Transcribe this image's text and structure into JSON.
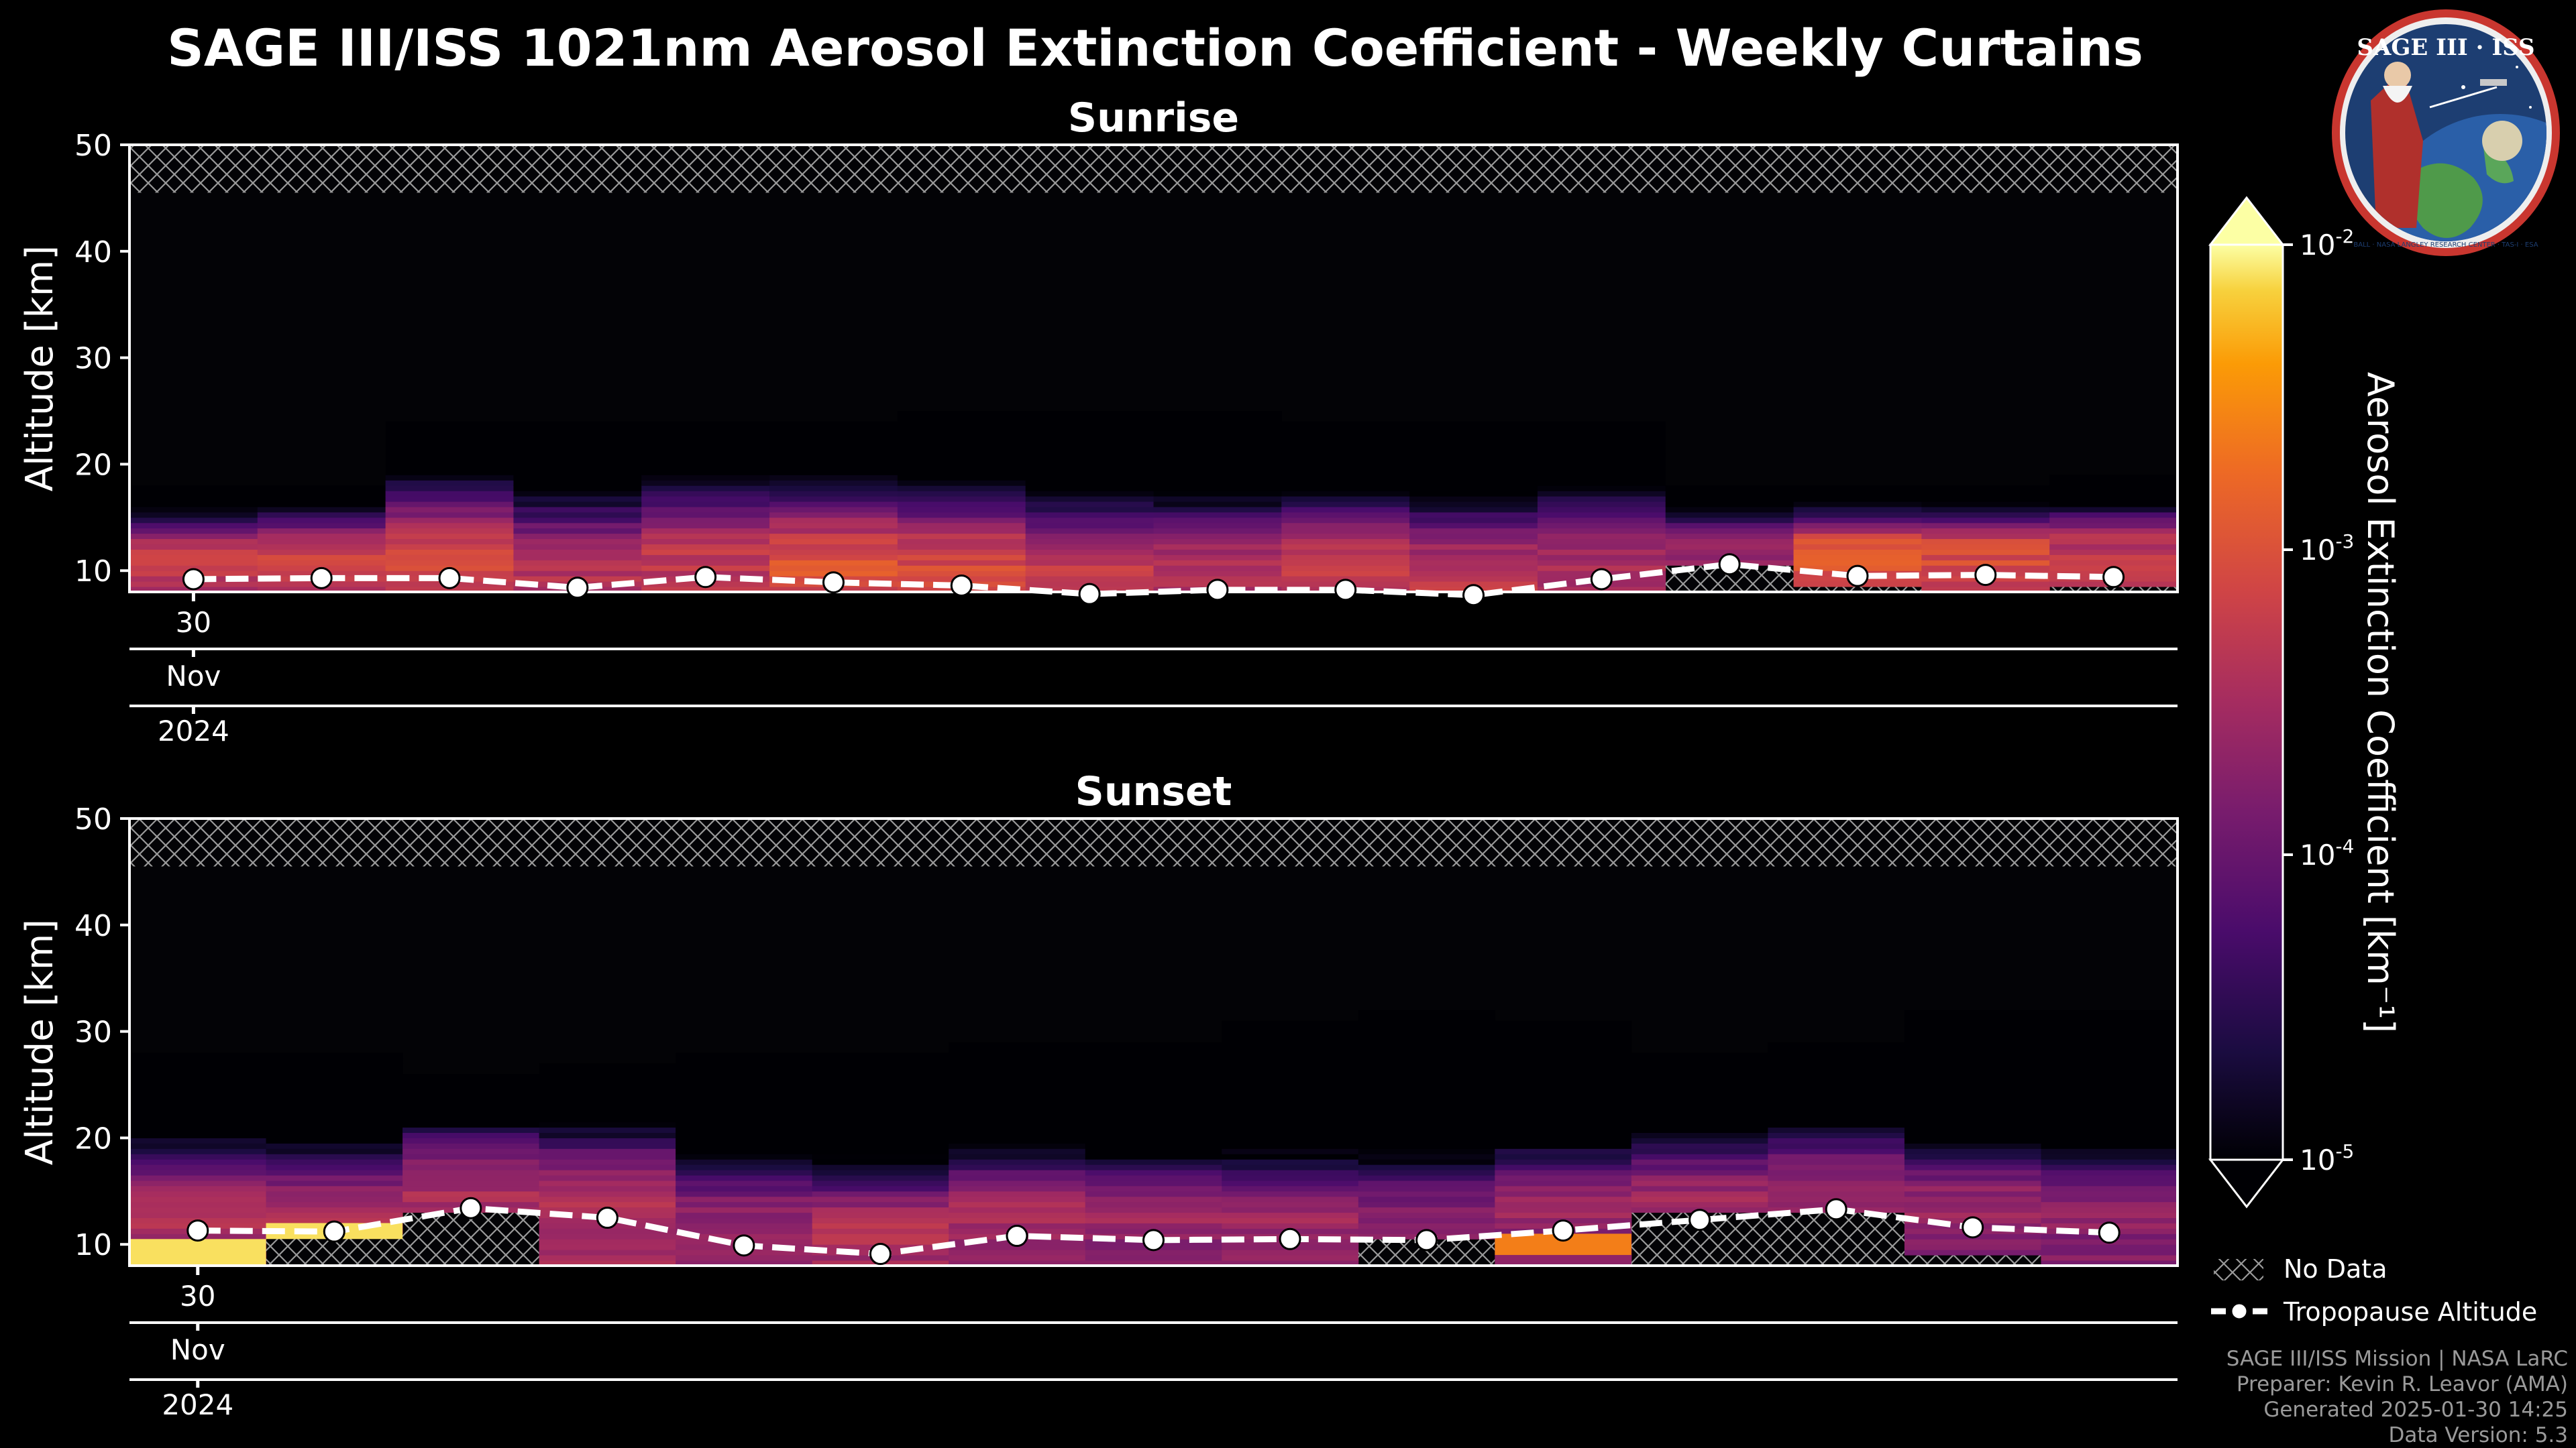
{
  "title": "SAGE III/ISS 1021nm Aerosol Extinction Coefficient - Weekly Curtains",
  "colorbar": {
    "label": "Aerosol Extinction Coefficient [km⁻¹]",
    "scale": "log",
    "range": [
      1e-05,
      0.01
    ],
    "tick_labels": [
      {
        "base": "10",
        "exp": "-2",
        "value": 0.01
      },
      {
        "base": "10",
        "exp": "-3",
        "value": 0.001
      },
      {
        "base": "10",
        "exp": "-4",
        "value": 0.0001
      },
      {
        "base": "10",
        "exp": "-5",
        "value": 1e-05
      }
    ],
    "colormap": "inferno",
    "extend": "both"
  },
  "legend": {
    "no_data": "No Data",
    "tropopause": "Tropopause Altitude"
  },
  "logo": {
    "text": "SAGE III · ISS",
    "ring_text": "BALL · NASA LANGLEY RESEARCH CENTER · TAS-I · ESA"
  },
  "credits": [
    "SAGE III/ISS Mission | NASA LaRC",
    "Preparer: Kevin R. Leavor (AMA)",
    "Generated 2025-01-30 14:25",
    "Data Version: 5.3"
  ],
  "chart_data": [
    {
      "type": "heatmap",
      "title": "Sunrise",
      "ylabel": "Altitude [km]",
      "ylim": [
        8,
        50
      ],
      "yticks": [
        10,
        20,
        30,
        40,
        50
      ],
      "xtick_labels": {
        "day": "30",
        "month": "Nov",
        "year": "2024"
      },
      "no_data_above_km": 45.5,
      "weeks": [
        {
          "bottom": 8,
          "top": 18,
          "log_ext": -3.5,
          "trop": 9.2
        },
        {
          "bottom": 8,
          "top": 18,
          "log_ext": -3.4,
          "trop": 9.3
        },
        {
          "bottom": 8,
          "top": 24,
          "log_ext": -3.3,
          "trop": 9.3
        },
        {
          "bottom": 8,
          "top": 24,
          "log_ext": -3.6,
          "trop": 8.4
        },
        {
          "bottom": 8,
          "top": 24,
          "log_ext": -3.5,
          "trop": 9.4
        },
        {
          "bottom": 8,
          "top": 24,
          "log_ext": -3.2,
          "trop": 8.9
        },
        {
          "bottom": 8,
          "top": 25,
          "log_ext": -3.3,
          "trop": 8.6
        },
        {
          "bottom": 8,
          "top": 25,
          "log_ext": -3.4,
          "trop": 7.8
        },
        {
          "bottom": 8,
          "top": 25,
          "log_ext": -3.6,
          "trop": 8.2
        },
        {
          "bottom": 8,
          "top": 24,
          "log_ext": -3.4,
          "trop": 8.2
        },
        {
          "bottom": 8,
          "top": 24,
          "log_ext": -3.5,
          "trop": 7.7
        },
        {
          "bottom": 8,
          "top": 24,
          "log_ext": -3.7,
          "trop": 9.2
        },
        {
          "bottom": 10.5,
          "top": 18,
          "log_ext": -3.8,
          "trop": 10.6
        },
        {
          "bottom": 8.5,
          "top": 18,
          "log_ext": -3.2,
          "trop": 9.5
        },
        {
          "bottom": 8,
          "top": 18,
          "log_ext": -3.3,
          "trop": 9.6
        },
        {
          "bottom": 8.5,
          "top": 19,
          "log_ext": -3.5,
          "trop": 9.4
        }
      ]
    },
    {
      "type": "heatmap",
      "title": "Sunset",
      "ylabel": "Altitude [km]",
      "ylim": [
        8,
        50
      ],
      "yticks": [
        10,
        20,
        30,
        40,
        50
      ],
      "xtick_labels": {
        "day": "30",
        "month": "Nov",
        "year": "2024"
      },
      "no_data_above_km": 45.5,
      "weeks": [
        {
          "bottom": 8,
          "top": 28,
          "log_ext": -3.6,
          "trop": 11.3
        },
        {
          "bottom": 11,
          "top": 28,
          "log_ext": -3.7,
          "trop": 11.2
        },
        {
          "bottom": 13,
          "top": 26,
          "log_ext": -3.7,
          "trop": 13.4
        },
        {
          "bottom": 8,
          "top": 27,
          "log_ext": -3.6,
          "trop": 12.5
        },
        {
          "bottom": 8,
          "top": 28,
          "log_ext": -3.8,
          "trop": 9.9
        },
        {
          "bottom": 8,
          "top": 28,
          "log_ext": -3.6,
          "trop": 9.1
        },
        {
          "bottom": 8,
          "top": 29,
          "log_ext": -3.7,
          "trop": 10.8
        },
        {
          "bottom": 8,
          "top": 29,
          "log_ext": -3.8,
          "trop": 10.4
        },
        {
          "bottom": 8,
          "top": 31,
          "log_ext": -3.8,
          "trop": 10.5
        },
        {
          "bottom": 10.5,
          "top": 32,
          "log_ext": -3.9,
          "trop": 10.4
        },
        {
          "bottom": 8,
          "top": 31,
          "log_ext": -3.8,
          "trop": 11.3
        },
        {
          "bottom": 13,
          "top": 28,
          "log_ext": -3.8,
          "trop": 12.3
        },
        {
          "bottom": 13,
          "top": 29,
          "log_ext": -3.8,
          "trop": 13.3
        },
        {
          "bottom": 9,
          "top": 32,
          "log_ext": -3.8,
          "trop": 11.6
        },
        {
          "bottom": 8,
          "top": 32,
          "log_ext": -3.9,
          "trop": 11.1
        }
      ],
      "highlights": [
        {
          "week": 0,
          "bottom": 8,
          "top": 10.5,
          "log_ext": -2.1
        },
        {
          "week": 1,
          "bottom": 10.5,
          "top": 12,
          "log_ext": -2.1
        },
        {
          "week": 10,
          "bottom": 9,
          "top": 11,
          "log_ext": -2.6
        }
      ]
    }
  ]
}
